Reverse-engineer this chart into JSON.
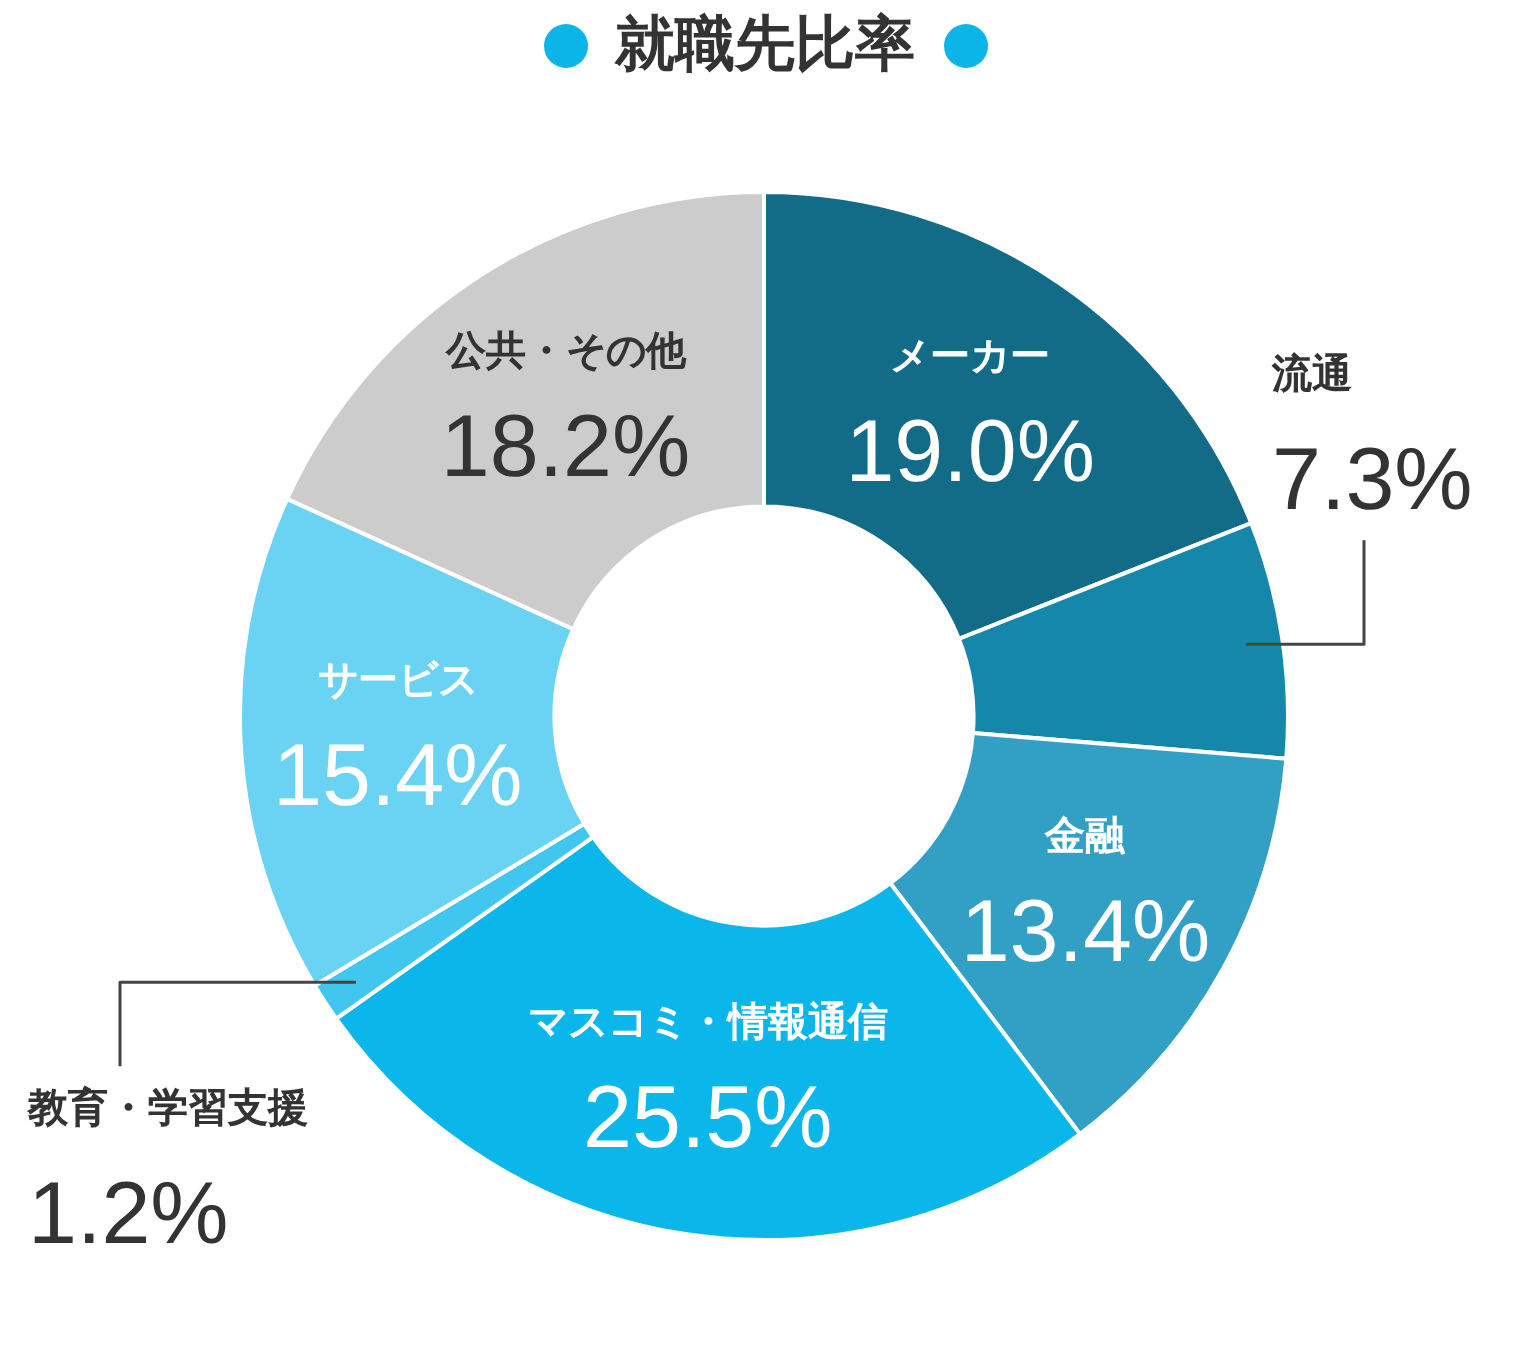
{
  "chart_data": {
    "type": "donut",
    "title": "就職先比率",
    "categories": [
      "メーカー",
      "流通",
      "金融",
      "マスコミ・情報通信",
      "教育・学習支援",
      "サービス",
      "公共・その他"
    ],
    "values": [
      19.0,
      7.3,
      13.4,
      25.5,
      1.2,
      15.4,
      18.2
    ],
    "colors": [
      "#126c87",
      "#1487ab",
      "#31a0c4",
      "#0bb7ea",
      "#40c6ef",
      "#6ad3f3",
      "#cccccc"
    ],
    "value_labels": [
      "19.0%",
      "7.3%",
      "13.4%",
      "25.5%",
      "1.2%",
      "15.4%",
      "18.2%"
    ]
  }
}
